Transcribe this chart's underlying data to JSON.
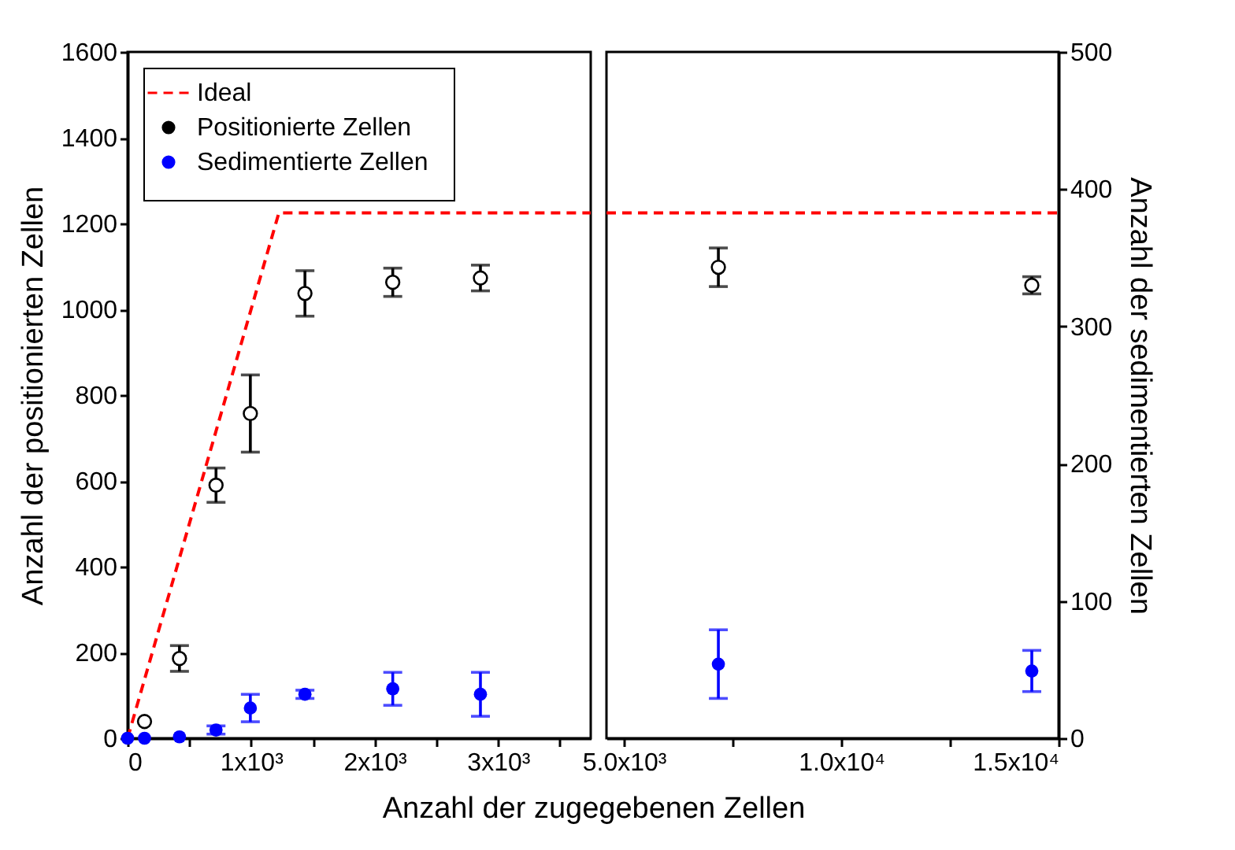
{
  "chart_data": [
    {
      "type": "scatter",
      "xlabel": "Anzahl der zugegebenen Zellen",
      "ylabel": "Anzahl der positionierten Zellen",
      "xlim": [
        0,
        3750
      ],
      "xticks": [
        0,
        {
          "value": 500,
          "label": null
        },
        {
          "value": 1000,
          "label": "1x10³"
        },
        {
          "value": 1500,
          "label": null
        },
        {
          "value": 2000,
          "label": "2x10³"
        },
        {
          "value": 2500,
          "label": null
        },
        {
          "value": 3000,
          "label": "3x10³"
        },
        {
          "value": 3500,
          "label": null
        }
      ],
      "ylim": [
        0,
        1600
      ],
      "yticks": [
        0,
        200,
        400,
        600,
        800,
        1000,
        1200,
        1400,
        1600
      ],
      "y2lim": [
        0,
        500
      ],
      "tick_labels": [
        "x",
        "y"
      ],
      "legend": "top left",
      "series": [
        {
          "name": "Ideal",
          "type": "line",
          "color": "#ff0000",
          "line_style": "dashed",
          "x": [
            0,
            1225,
            3750
          ],
          "values": [
            0,
            1225,
            1225
          ]
        },
        {
          "name": "Positionierte Zellen",
          "marker": "circle",
          "color": "#000000",
          "x": [
            137,
            420,
            716,
            994,
            1436,
            2147,
            2857
          ],
          "values": [
            39,
            186,
            590,
            757,
            1037,
            1063,
            1073
          ],
          "errors": [
            null,
            30,
            40,
            90,
            53,
            33,
            30
          ]
        },
        {
          "name": "Sedimentierte Zellen",
          "marker": "circle",
          "axis": "y2",
          "color": "#0000ff",
          "x": [
            0,
            137,
            420,
            716,
            994,
            1436,
            2147,
            2857
          ],
          "values": [
            0,
            0,
            1,
            6,
            22,
            32,
            36,
            32
          ],
          "errors": [
            null,
            null,
            null,
            3,
            10,
            3,
            12,
            16
          ]
        }
      ]
    },
    {
      "type": "scatter",
      "y2label": "Anzahl der sedimentierten Zellen",
      "xlim": [
        4600,
        15000
      ],
      "xticks": [
        {
          "value": 5000,
          "label": "5.0x10³"
        },
        {
          "value": 7500,
          "label": null
        },
        {
          "value": 10000,
          "label": "1.0x10⁴"
        },
        {
          "value": 12500,
          "label": null
        },
        {
          "value": 15000,
          "label": "1.5x10⁴"
        }
      ],
      "ylim": [
        0,
        1600
      ],
      "y2lim": [
        0,
        500
      ],
      "y2ticks": [
        0,
        100,
        200,
        300,
        400,
        500
      ],
      "tick_labels": [
        "x",
        "y2"
      ],
      "series": [
        {
          "type": "line",
          "color": "#ff0000",
          "line_style": "dashed",
          "x": [
            4600,
            15000
          ],
          "values": [
            1225,
            1225
          ]
        },
        {
          "marker": "circle",
          "color": "#000000",
          "x": [
            7174,
            14384
          ],
          "values": [
            1098,
            1056
          ],
          "errors": [
            45,
            20
          ]
        },
        {
          "marker": "circle",
          "axis": "y2",
          "color": "#0000ff",
          "x": [
            7174,
            14384
          ],
          "values": [
            54,
            49
          ],
          "errors": [
            25,
            15
          ]
        }
      ]
    }
  ]
}
